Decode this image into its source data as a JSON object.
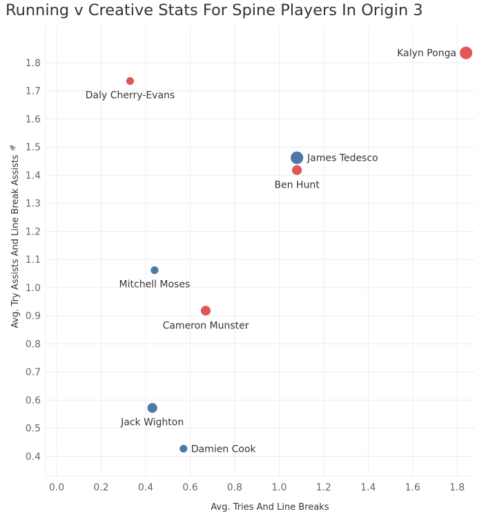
{
  "chart_data": {
    "type": "scatter",
    "title": "Running v Creative Stats For Spine Players In Origin 3",
    "xlabel": "Avg. Tries And Line Breaks",
    "ylabel": "Avg. Try Assists And Line Break Assists",
    "xlim": [
      -0.05,
      1.88
    ],
    "ylim": [
      0.33,
      1.93
    ],
    "x_ticks": [
      "0.0",
      "0.2",
      "0.4",
      "0.6",
      "0.8",
      "1.0",
      "1.2",
      "1.4",
      "1.6",
      "1.8"
    ],
    "y_ticks": [
      "0.4",
      "0.5",
      "0.6",
      "0.7",
      "0.8",
      "0.9",
      "1.0",
      "1.1",
      "1.2",
      "1.3",
      "1.4",
      "1.5",
      "1.6",
      "1.7",
      "1.8"
    ],
    "grid": true,
    "legend": "none",
    "colors": {
      "red": "#e15759",
      "blue": "#4e79a7"
    },
    "points": [
      {
        "label": "Kalyn Ponga",
        "x": 1.84,
        "y": 1.835,
        "color": "red",
        "size": "large"
      },
      {
        "label": "Daly Cherry-Evans",
        "x": 0.33,
        "y": 1.735,
        "color": "red",
        "size": "small"
      },
      {
        "label": "James Tedesco",
        "x": 1.08,
        "y": 1.462,
        "color": "blue",
        "size": "large"
      },
      {
        "label": "Ben Hunt",
        "x": 1.08,
        "y": 1.418,
        "color": "red",
        "size": "medium"
      },
      {
        "label": "Mitchell Moses",
        "x": 0.44,
        "y": 1.062,
        "color": "blue",
        "size": "small"
      },
      {
        "label": "Cameron Munster",
        "x": 0.67,
        "y": 0.918,
        "color": "red",
        "size": "medium"
      },
      {
        "label": "Jack Wighton",
        "x": 0.43,
        "y": 0.572,
        "color": "blue",
        "size": "medium"
      },
      {
        "label": "Damien Cook",
        "x": 0.57,
        "y": 0.427,
        "color": "blue",
        "size": "small"
      }
    ]
  }
}
